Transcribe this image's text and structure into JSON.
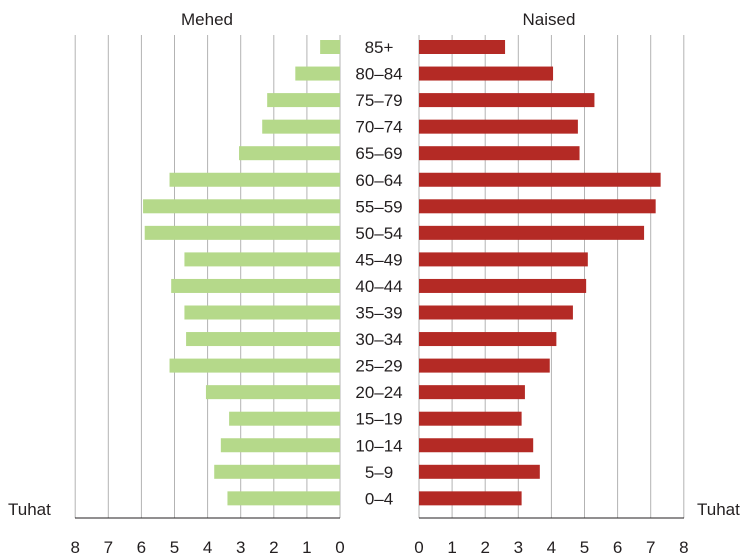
{
  "chart_data": {
    "type": "bar",
    "orientation": "horizontal",
    "layout": "population-pyramid",
    "categories": [
      "0–4",
      "5–9",
      "10–14",
      "15–19",
      "20–24",
      "25–29",
      "30–34",
      "35–39",
      "40–44",
      "45–49",
      "50–54",
      "55–59",
      "60–64",
      "65–69",
      "70–74",
      "75–79",
      "80–84",
      "85+"
    ],
    "series": [
      {
        "name": "Mehed",
        "side": "left",
        "color": "#b5d98a",
        "values": [
          3.4,
          3.8,
          3.6,
          3.35,
          4.05,
          5.15,
          4.65,
          4.7,
          5.1,
          4.7,
          5.9,
          5.95,
          5.15,
          3.05,
          2.35,
          2.2,
          1.35,
          0.6
        ]
      },
      {
        "name": "Naised",
        "side": "right",
        "color": "#b42a25",
        "values": [
          3.1,
          3.65,
          3.45,
          3.1,
          3.2,
          3.95,
          4.15,
          4.65,
          5.05,
          5.1,
          6.8,
          7.15,
          7.3,
          4.85,
          4.8,
          5.3,
          4.05,
          2.6
        ]
      }
    ],
    "xlim": [
      0,
      8
    ],
    "ticks": [
      0,
      1,
      2,
      3,
      4,
      5,
      6,
      7,
      8
    ],
    "left_tick_labels": [
      "8",
      "7",
      "6",
      "5",
      "4",
      "3",
      "2",
      "1",
      "0"
    ],
    "right_tick_labels": [
      "0",
      "1",
      "2",
      "3",
      "4",
      "5",
      "6",
      "7",
      "8"
    ],
    "xlabel_left": "Tuhat",
    "xlabel_right": "Tuhat",
    "grid": true
  }
}
